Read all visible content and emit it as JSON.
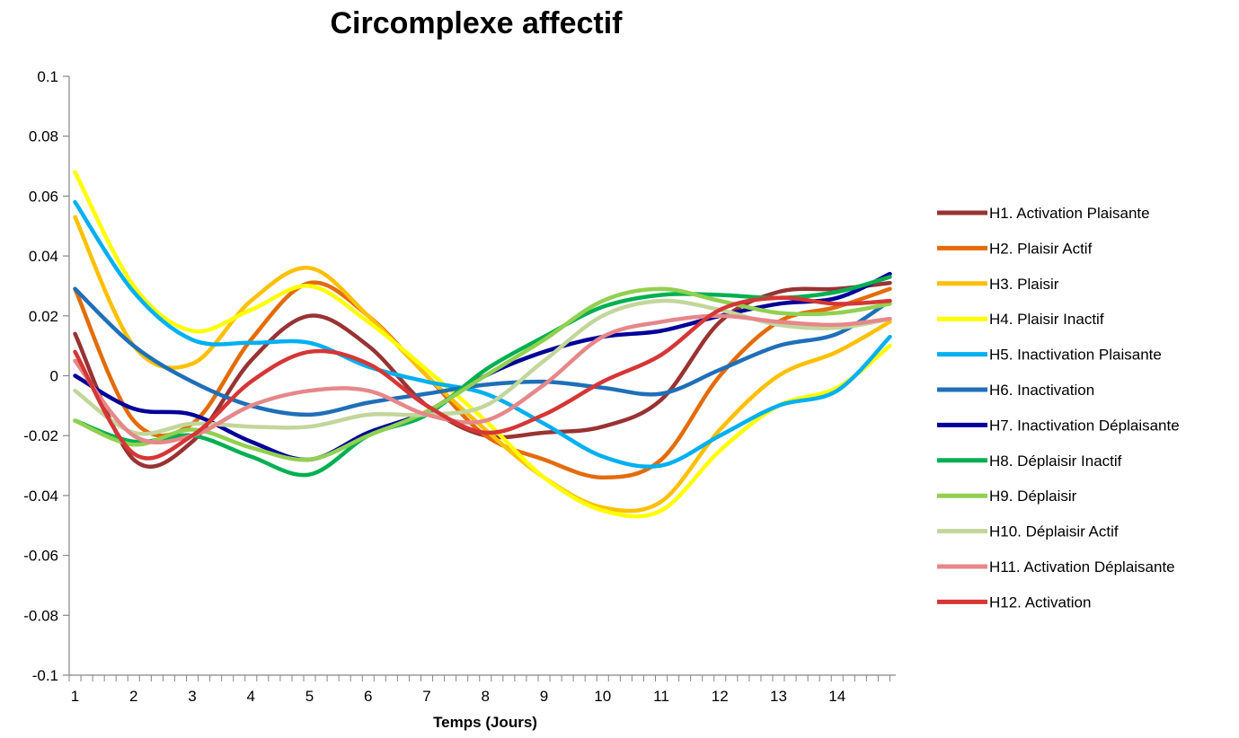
{
  "chart_data": {
    "type": "line",
    "title": "Circomplexe affectif",
    "xlabel": "Temps (Jours)",
    "ylabel": "",
    "x": [
      1,
      2,
      3,
      4,
      5,
      6,
      7,
      8,
      9,
      10,
      11,
      12,
      13,
      14,
      14.9
    ],
    "xticks": [
      1,
      2,
      3,
      4,
      5,
      6,
      7,
      8,
      9,
      10,
      11,
      12,
      13,
      14
    ],
    "xlim": [
      0.9,
      15
    ],
    "ylim": [
      -0.1,
      0.1
    ],
    "yticks": [
      0.1,
      0.08,
      0.06,
      0.04,
      0.02,
      0,
      -0.02,
      -0.04,
      -0.06,
      -0.08,
      -0.1
    ],
    "ytick_labels": [
      "0.1",
      "0.08",
      "0.06",
      "0.04",
      "0.02",
      "0",
      "-0.02",
      "-0.04",
      "-0.06",
      "-0.08",
      "-0.1"
    ],
    "grid": false,
    "legend_position": "right",
    "series": [
      {
        "name": "H1. Activation Plaisante",
        "color": "#993333",
        "values": [
          0.014,
          -0.028,
          -0.022,
          0.005,
          0.02,
          0.01,
          -0.01,
          -0.02,
          -0.019,
          -0.017,
          -0.008,
          0.018,
          0.028,
          0.029,
          0.031
        ]
      },
      {
        "name": "H2. Plaisir Actif",
        "color": "#E36C0A",
        "values": [
          0.029,
          -0.015,
          -0.016,
          0.012,
          0.031,
          0.02,
          0.0,
          -0.02,
          -0.028,
          -0.034,
          -0.028,
          0.0,
          0.018,
          0.023,
          0.029
        ]
      },
      {
        "name": "H3. Plaisir",
        "color": "#FFC000",
        "values": [
          0.053,
          0.01,
          0.004,
          0.025,
          0.036,
          0.02,
          0.0,
          -0.018,
          -0.034,
          -0.044,
          -0.042,
          -0.018,
          0.0,
          0.008,
          0.018
        ]
      },
      {
        "name": "H4. Plaisir Inactif",
        "color": "#FFFF00",
        "values": [
          0.068,
          0.03,
          0.015,
          0.022,
          0.03,
          0.018,
          0.002,
          -0.015,
          -0.034,
          -0.045,
          -0.045,
          -0.025,
          -0.01,
          -0.004,
          0.01
        ]
      },
      {
        "name": "H5. Inactivation Plaisante",
        "color": "#00B0F0",
        "values": [
          0.058,
          0.028,
          0.012,
          0.011,
          0.011,
          0.003,
          -0.002,
          -0.006,
          -0.016,
          -0.027,
          -0.03,
          -0.02,
          -0.01,
          -0.005,
          0.013
        ]
      },
      {
        "name": "H6. Inactivation",
        "color": "#1F6FB8",
        "values": [
          0.029,
          0.01,
          -0.002,
          -0.01,
          -0.013,
          -0.009,
          -0.006,
          -0.003,
          -0.002,
          -0.004,
          -0.006,
          0.002,
          0.01,
          0.014,
          0.025
        ]
      },
      {
        "name": "H7. Inactivation Déplaisante",
        "color": "#000099",
        "values": [
          0.0,
          -0.011,
          -0.013,
          -0.022,
          -0.028,
          -0.019,
          -0.012,
          0.0,
          0.008,
          0.013,
          0.015,
          0.02,
          0.024,
          0.026,
          0.034
        ]
      },
      {
        "name": "H8. Déplaisir Inactif",
        "color": "#00B050",
        "values": [
          -0.015,
          -0.022,
          -0.02,
          -0.027,
          -0.033,
          -0.02,
          -0.013,
          0.002,
          0.013,
          0.023,
          0.027,
          0.027,
          0.026,
          0.028,
          0.033
        ]
      },
      {
        "name": "H9. Déplaisir",
        "color": "#92D050",
        "values": [
          -0.015,
          -0.023,
          -0.018,
          -0.024,
          -0.028,
          -0.02,
          -0.012,
          0.0,
          0.012,
          0.025,
          0.029,
          0.025,
          0.021,
          0.021,
          0.024
        ]
      },
      {
        "name": "H10. Déplaisir Actif",
        "color": "#C3D69B",
        "values": [
          -0.005,
          -0.019,
          -0.016,
          -0.017,
          -0.017,
          -0.013,
          -0.013,
          -0.01,
          0.005,
          0.02,
          0.025,
          0.022,
          0.017,
          0.016,
          0.019
        ]
      },
      {
        "name": "H11. Activation Déplaisante",
        "color": "#E6878A",
        "values": [
          0.005,
          -0.02,
          -0.02,
          -0.01,
          -0.005,
          -0.005,
          -0.013,
          -0.015,
          -0.003,
          0.013,
          0.018,
          0.02,
          0.018,
          0.017,
          0.019
        ]
      },
      {
        "name": "H12. Activation",
        "color": "#D63636",
        "values": [
          0.008,
          -0.026,
          -0.02,
          -0.002,
          0.008,
          0.004,
          -0.01,
          -0.019,
          -0.013,
          -0.002,
          0.007,
          0.022,
          0.026,
          0.024,
          0.025
        ]
      }
    ]
  }
}
